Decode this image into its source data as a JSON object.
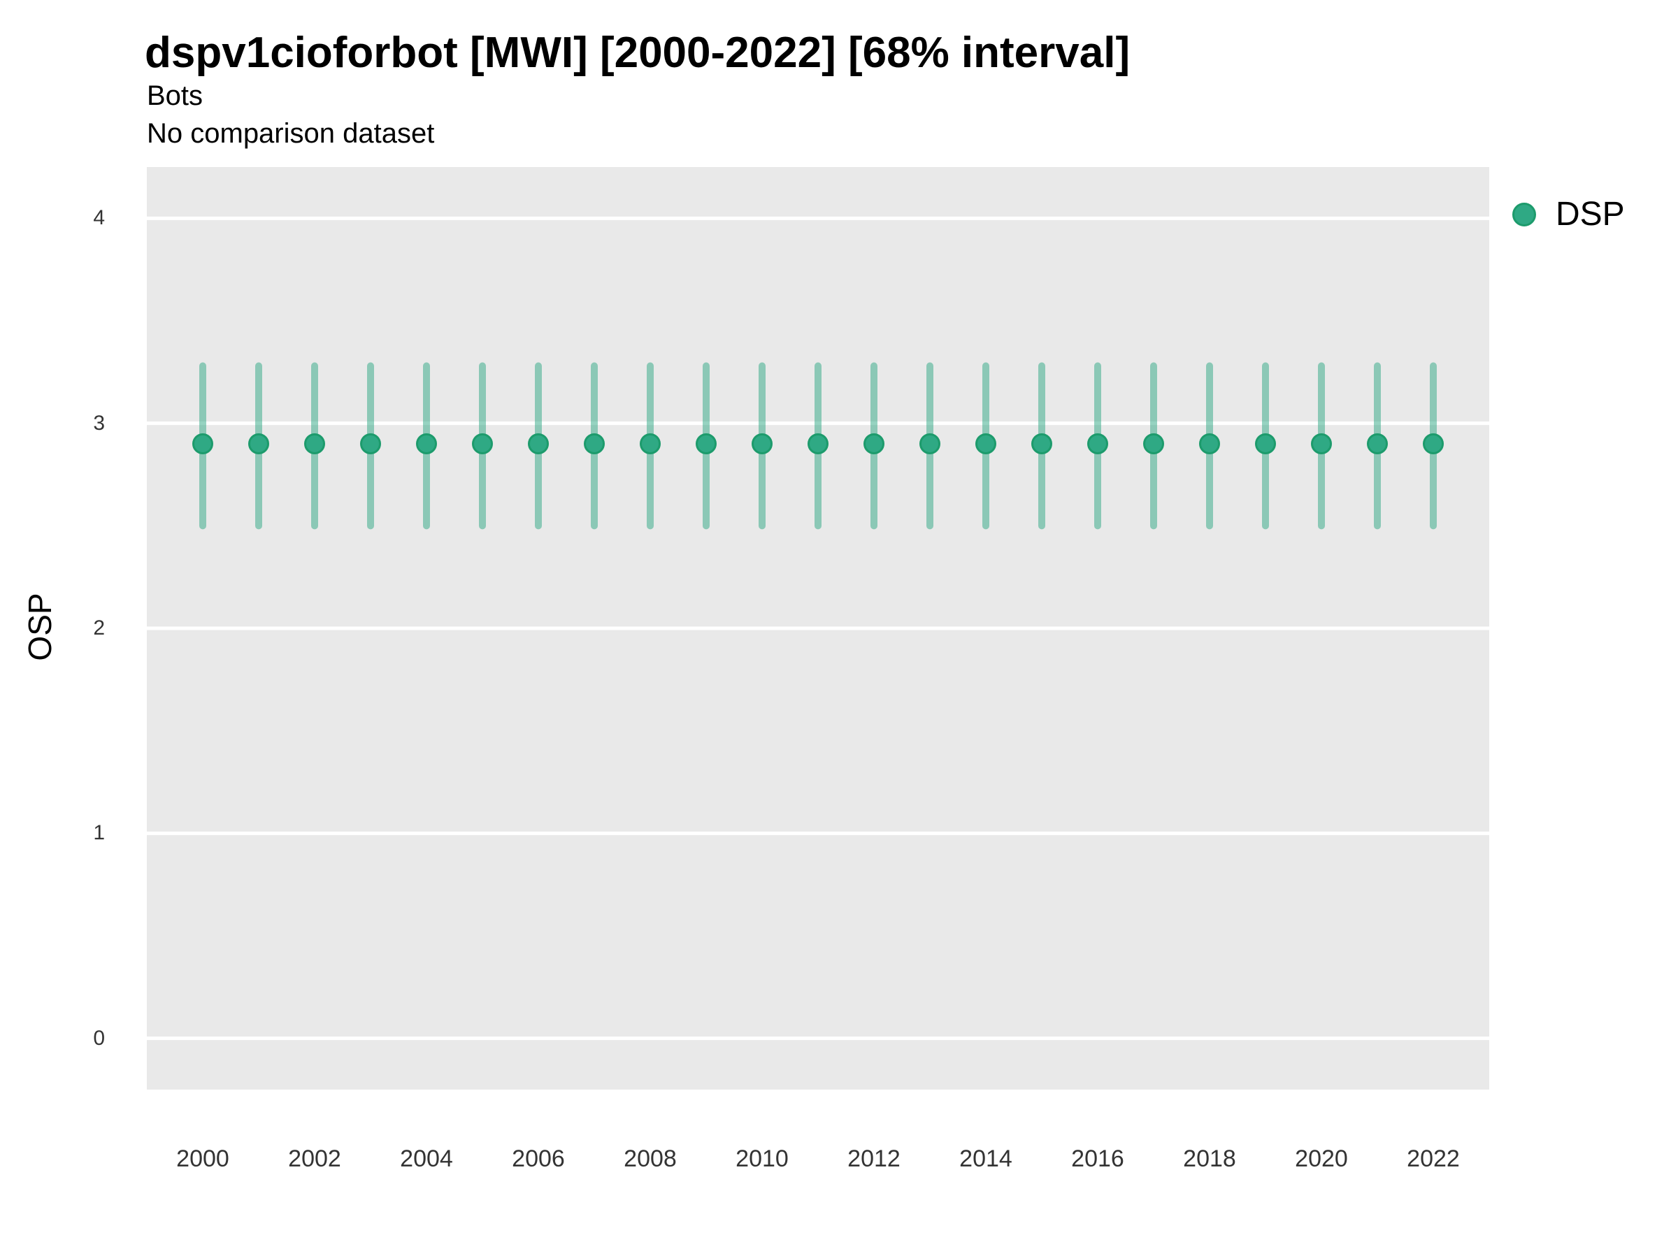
{
  "title": "dspv1cioforbot [MWI] [2000-2022] [68% interval]",
  "subtitle": "Bots",
  "subtitle2": "No comparison dataset",
  "legend": {
    "position": "right",
    "items": [
      {
        "label": "DSP",
        "swatch": "circle-icon"
      }
    ]
  },
  "colors": {
    "point_fill": "#2fa984",
    "point_stroke": "#1d9b6c",
    "errorbar": "#2fa984",
    "panel_bg": "#e9e9e9",
    "gridline": "#ffffff",
    "tick_text": "#333333"
  },
  "chart_data": {
    "type": "scatter",
    "title": "dspv1cioforbot [MWI] [2000-2022] [68% interval]",
    "subtitle": "Bots",
    "note": "No comparison dataset",
    "xlabel": "",
    "ylabel": "OSP",
    "ylim": [
      -0.25,
      4.25
    ],
    "yticks": [
      0,
      1,
      2,
      3,
      4
    ],
    "xticks": [
      2000,
      2002,
      2004,
      2006,
      2008,
      2010,
      2012,
      2014,
      2016,
      2018,
      2020,
      2022
    ],
    "grid": "horizontal-white-on-gray",
    "legend_position": "right",
    "interval_label": "68% interval",
    "x": [
      2000,
      2001,
      2002,
      2003,
      2004,
      2005,
      2006,
      2007,
      2008,
      2009,
      2010,
      2011,
      2012,
      2013,
      2014,
      2015,
      2016,
      2017,
      2018,
      2019,
      2020,
      2021,
      2022
    ],
    "series": [
      {
        "name": "DSP",
        "values": [
          2.9,
          2.9,
          2.9,
          2.9,
          2.9,
          2.9,
          2.9,
          2.9,
          2.9,
          2.9,
          2.9,
          2.9,
          2.9,
          2.9,
          2.9,
          2.9,
          2.9,
          2.9,
          2.9,
          2.9,
          2.9,
          2.9,
          2.9
        ],
        "interval_low": [
          2.5,
          2.5,
          2.5,
          2.5,
          2.5,
          2.5,
          2.5,
          2.5,
          2.5,
          2.5,
          2.5,
          2.5,
          2.5,
          2.5,
          2.5,
          2.5,
          2.5,
          2.5,
          2.5,
          2.5,
          2.5,
          2.5,
          2.5
        ],
        "interval_high": [
          3.28,
          3.28,
          3.28,
          3.28,
          3.28,
          3.28,
          3.28,
          3.28,
          3.28,
          3.28,
          3.28,
          3.28,
          3.28,
          3.28,
          3.28,
          3.28,
          3.28,
          3.28,
          3.28,
          3.28,
          3.28,
          3.28,
          3.28
        ]
      }
    ]
  }
}
